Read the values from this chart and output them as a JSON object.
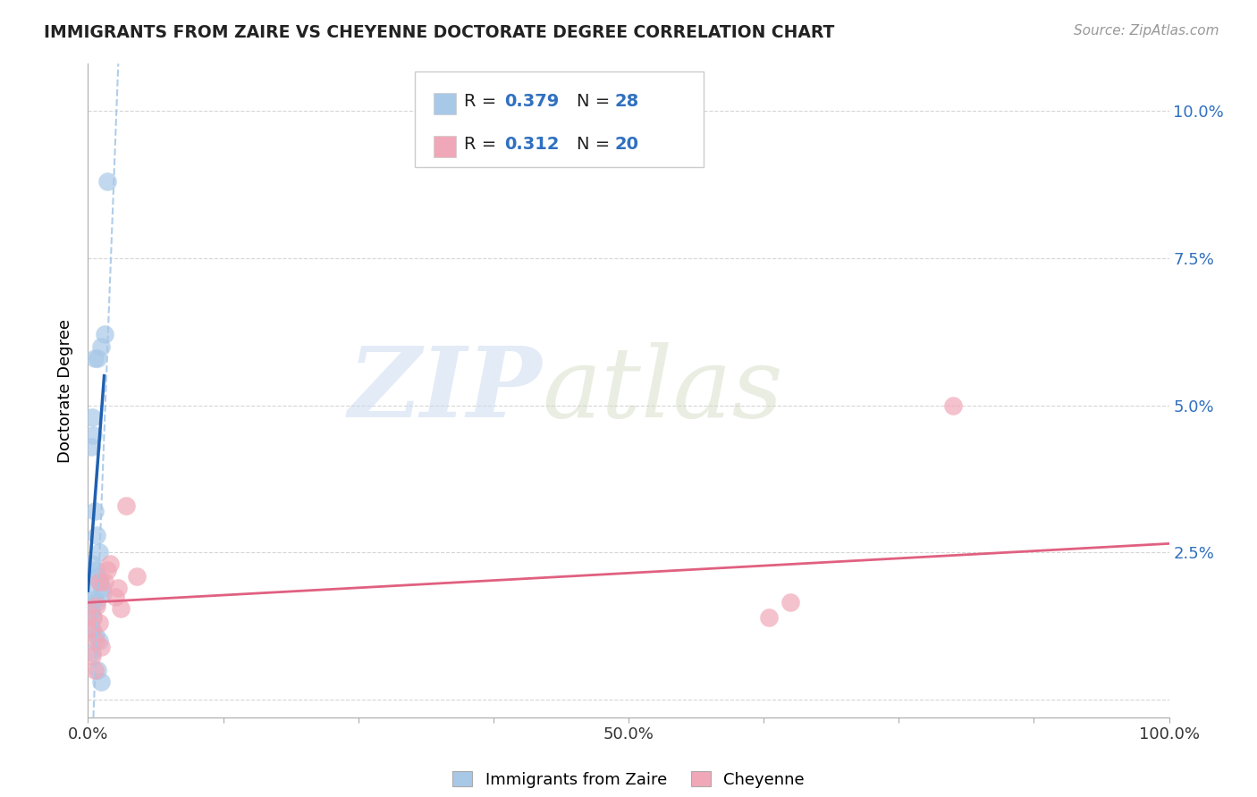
{
  "title": "IMMIGRANTS FROM ZAIRE VS CHEYENNE DOCTORATE DEGREE CORRELATION CHART",
  "source": "Source: ZipAtlas.com",
  "ylabel": "Doctorate Degree",
  "xlim": [
    0,
    100
  ],
  "ylim": [
    -0.3,
    10.8
  ],
  "ytick_vals": [
    0,
    2.5,
    5.0,
    7.5,
    10.0
  ],
  "ytick_labels": [
    "",
    "2.5%",
    "5.0%",
    "7.5%",
    "10.0%"
  ],
  "xtick_positions": [
    0,
    12.5,
    25,
    37.5,
    50,
    62.5,
    75,
    87.5,
    100
  ],
  "xtick_labels": [
    "0.0%",
    "",
    "",
    "",
    "50.0%",
    "",
    "",
    "",
    "100.0%"
  ],
  "blue_color": "#A8C8E8",
  "pink_color": "#F0A8B8",
  "blue_line_color": "#2060B0",
  "pink_line_color": "#E06080",
  "blue_dots_x": [
    1.8,
    1.5,
    1.2,
    0.9,
    0.6,
    0.4,
    0.5,
    0.3,
    0.6,
    0.8,
    1.0,
    0.4,
    0.7,
    0.9,
    1.1,
    1.3,
    0.2,
    1.4,
    0.6,
    0.8,
    0.3,
    0.5,
    0.4,
    0.7,
    1.0,
    0.4,
    0.9,
    1.2
  ],
  "blue_dots_y": [
    8.8,
    6.2,
    6.0,
    5.8,
    5.8,
    4.8,
    4.5,
    4.3,
    3.2,
    2.8,
    2.5,
    2.3,
    2.2,
    2.1,
    2.0,
    1.9,
    1.85,
    1.8,
    1.7,
    1.65,
    1.5,
    1.4,
    1.2,
    1.1,
    1.0,
    0.8,
    0.5,
    0.3
  ],
  "pink_dots_x": [
    3.5,
    4.5,
    2.0,
    1.5,
    1.0,
    2.5,
    0.8,
    0.5,
    0.3,
    0.7,
    1.2,
    0.4,
    0.6,
    65.0,
    63.0,
    80.0,
    3.0,
    1.8,
    2.8,
    1.0
  ],
  "pink_dots_y": [
    3.3,
    2.1,
    2.3,
    2.0,
    2.0,
    1.75,
    1.6,
    1.4,
    1.2,
    1.0,
    0.9,
    0.75,
    0.5,
    1.65,
    1.4,
    5.0,
    1.55,
    2.2,
    1.9,
    1.3
  ],
  "blue_reg_x0": 0.0,
  "blue_reg_y0": 1.85,
  "blue_reg_x1": 1.5,
  "blue_reg_y1": 5.5,
  "blue_dashed_x0": 0.5,
  "blue_dashed_y0": -0.3,
  "blue_dashed_x1": 2.8,
  "blue_dashed_y1": 10.8,
  "pink_reg_x0": 0,
  "pink_reg_y0": 1.65,
  "pink_reg_x1": 100,
  "pink_reg_y1": 2.65,
  "watermark_zip_color": "#C8D8F0",
  "watermark_atlas_color": "#D0D8C0"
}
